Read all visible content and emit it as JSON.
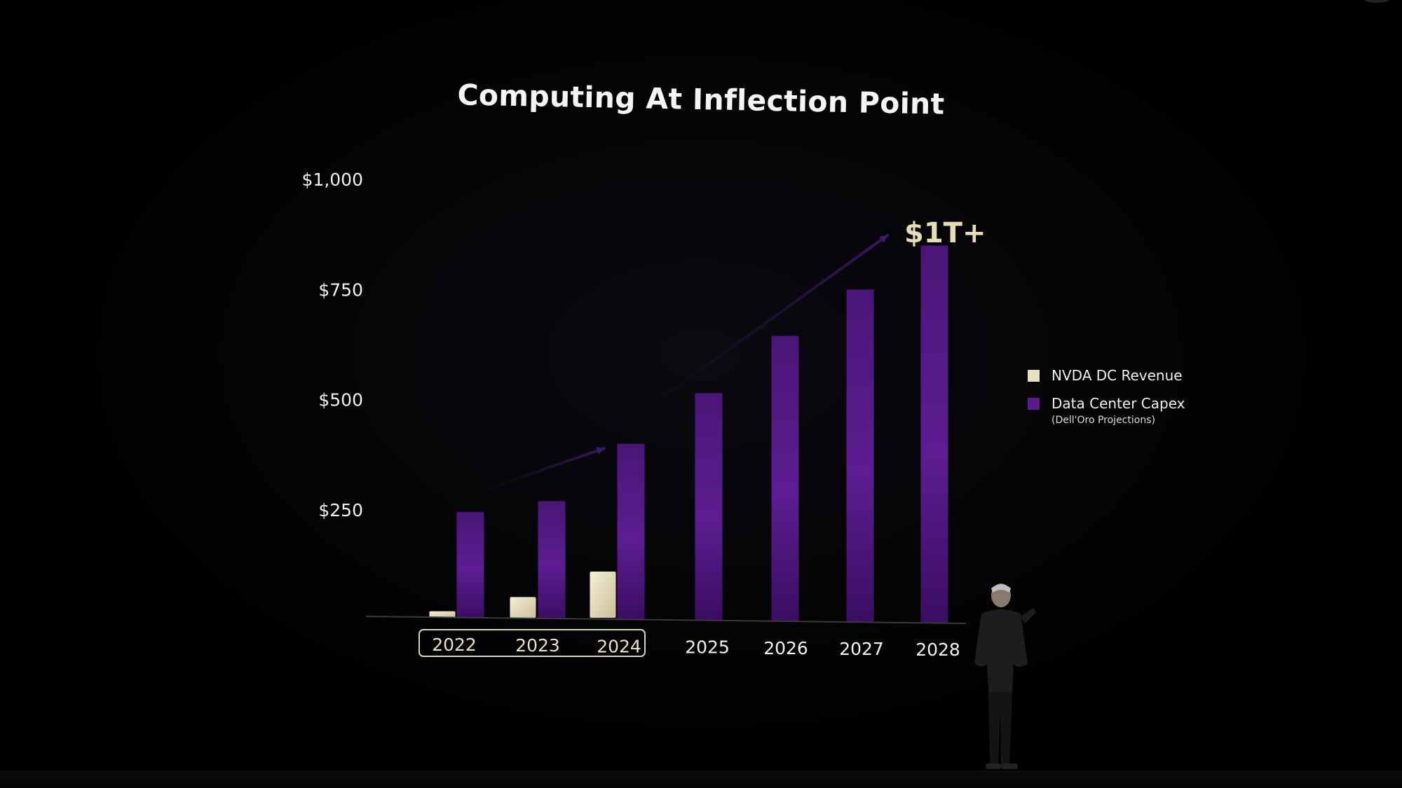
{
  "title": "Computing At Inflection Point",
  "callout": "$1T+",
  "legend": {
    "items": [
      {
        "label": "NVDA DC Revenue",
        "note": "",
        "color": "#e9dfc0"
      },
      {
        "label": "Data Center Capex",
        "note": "(Dell'Oro Projections)",
        "color": "#5a1c8c"
      }
    ]
  },
  "chart_data": {
    "type": "bar",
    "title": "Computing At Inflection Point",
    "xlabel": "",
    "ylabel": "",
    "categories": [
      "2022",
      "2023",
      "2024",
      "2025",
      "2026",
      "2027",
      "2028"
    ],
    "yticks": [
      "$250",
      "$500",
      "$750",
      "$1,000"
    ],
    "ytick_values": [
      250,
      500,
      750,
      1000
    ],
    "ylim": [
      0,
      1000
    ],
    "highlighted_categories": [
      "2022",
      "2023",
      "2024"
    ],
    "annotation": "$1T+",
    "grid": false,
    "legend_position": "right",
    "series": [
      {
        "name": "NVDA DC Revenue",
        "values": [
          15,
          47,
          105,
          null,
          null,
          null,
          null
        ],
        "color": "#e9dfc0"
      },
      {
        "name": "Data Center Capex",
        "values": [
          240,
          265,
          395,
          510,
          640,
          745,
          845
        ],
        "color": "#5a1c8c"
      }
    ]
  }
}
